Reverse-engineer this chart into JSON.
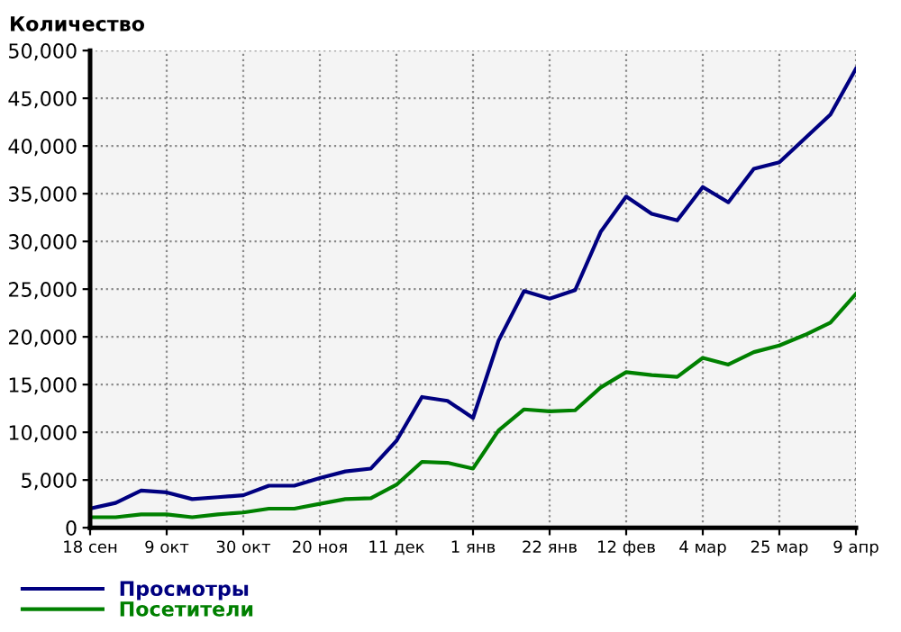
{
  "chart_data": {
    "type": "line",
    "ylabel": "Количество",
    "categories": [
      "18 сен",
      null,
      null,
      "9 окт",
      null,
      null,
      "30 окт",
      null,
      null,
      "20 ноя",
      null,
      null,
      "11 дек",
      null,
      null,
      "1 янв",
      null,
      null,
      "22 янв",
      null,
      null,
      "12 фев",
      null,
      null,
      "4 мар",
      null,
      null,
      "25 мар",
      null,
      null,
      "9 апр"
    ],
    "series": [
      {
        "name": "Просмотры",
        "color": "#000080",
        "values": [
          2000,
          2600,
          3900,
          3700,
          3000,
          3200,
          3400,
          4400,
          4400,
          5200,
          5900,
          6200,
          9100,
          13700,
          13300,
          11500,
          19600,
          24800,
          24000,
          24900,
          31000,
          34700,
          32900,
          32200,
          35700,
          34100,
          37600,
          38300,
          40800,
          43300,
          48100
        ]
      },
      {
        "name": "Посетители",
        "color": "#008000",
        "values": [
          1100,
          1100,
          1400,
          1400,
          1100,
          1400,
          1600,
          2000,
          2000,
          2500,
          3000,
          3100,
          4500,
          6900,
          6800,
          6200,
          10200,
          12400,
          12200,
          12300,
          14700,
          16300,
          16000,
          15800,
          17800,
          17100,
          18400,
          19100,
          20200,
          21500,
          24500
        ]
      }
    ],
    "ylim": [
      0,
      50000
    ],
    "yticks": [
      0,
      {
        "value": 5000,
        "label": "5,000"
      },
      {
        "value": 10000,
        "label": "10,000"
      },
      {
        "value": 15000,
        "label": "15,000"
      },
      {
        "value": 20000,
        "label": "20,000"
      },
      {
        "value": 25000,
        "label": "25,000"
      },
      {
        "value": 30000,
        "label": "30,000"
      },
      {
        "value": 35000,
        "label": "35,000"
      },
      {
        "value": 40000,
        "label": "40,000"
      },
      {
        "value": 45000,
        "label": "45,000"
      },
      {
        "value": 50000,
        "label": "50,000"
      }
    ],
    "grid": true,
    "legend": "bottom left",
    "marker": "none",
    "line_style": "solid"
  }
}
